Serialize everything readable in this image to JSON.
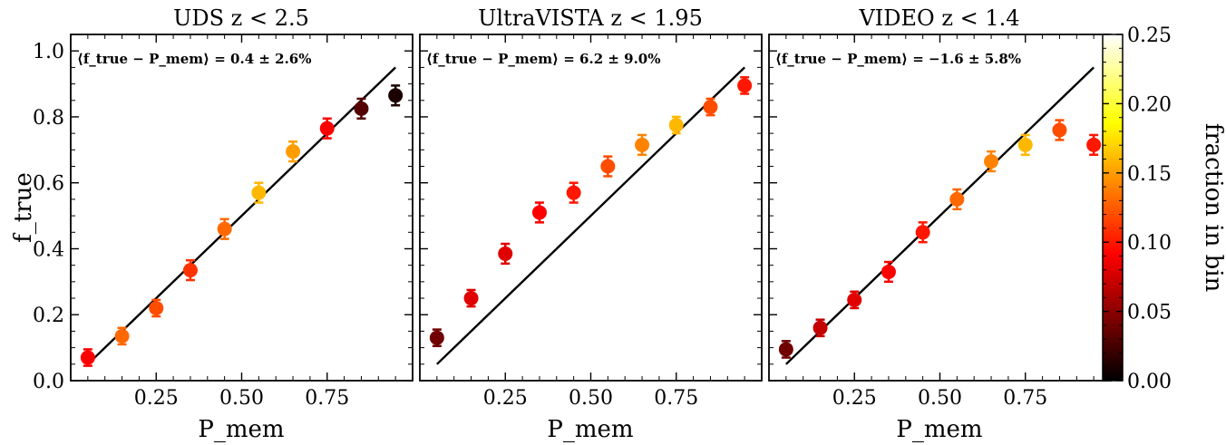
{
  "chart_data": [
    {
      "type": "scatter",
      "title": "UDS z < 2.5",
      "xlabel": "P_mem",
      "ylabel": "f_true",
      "annotation": "⟨f_true − P_mem⟩ = 0.4 ± 2.6%",
      "xlim": [
        0,
        1
      ],
      "ylim": [
        0,
        1.05
      ],
      "xticks": [
        "0.25",
        "0.50",
        "0.75"
      ],
      "yticks": [
        "0.0",
        "0.2",
        "0.4",
        "0.6",
        "0.8",
        "1.0"
      ],
      "line": {
        "x": [
          0.05,
          0.95
        ],
        "y": [
          0.05,
          0.95
        ]
      },
      "points": [
        {
          "x": 0.05,
          "y": 0.07,
          "err": 0.025,
          "frac": 0.09
        },
        {
          "x": 0.15,
          "y": 0.135,
          "err": 0.025,
          "frac": 0.13
        },
        {
          "x": 0.25,
          "y": 0.22,
          "err": 0.025,
          "frac": 0.12
        },
        {
          "x": 0.35,
          "y": 0.335,
          "err": 0.03,
          "frac": 0.11
        },
        {
          "x": 0.45,
          "y": 0.46,
          "err": 0.03,
          "frac": 0.13
        },
        {
          "x": 0.55,
          "y": 0.57,
          "err": 0.03,
          "frac": 0.16
        },
        {
          "x": 0.65,
          "y": 0.695,
          "err": 0.03,
          "frac": 0.15
        },
        {
          "x": 0.75,
          "y": 0.765,
          "err": 0.03,
          "frac": 0.09
        },
        {
          "x": 0.85,
          "y": 0.825,
          "err": 0.03,
          "frac": 0.03
        },
        {
          "x": 0.95,
          "y": 0.865,
          "err": 0.03,
          "frac": 0.01
        }
      ]
    },
    {
      "type": "scatter",
      "title": "UltraVISTA z < 1.95",
      "xlabel": "P_mem",
      "ylabel": "",
      "annotation": "⟨f_true − P_mem⟩ = 6.2 ± 9.0%",
      "xlim": [
        0,
        1
      ],
      "ylim": [
        0,
        1.05
      ],
      "xticks": [
        "0.25",
        "0.50",
        "0.75"
      ],
      "yticks": [],
      "line": {
        "x": [
          0.05,
          0.95
        ],
        "y": [
          0.05,
          0.95
        ]
      },
      "points": [
        {
          "x": 0.05,
          "y": 0.13,
          "err": 0.025,
          "frac": 0.04
        },
        {
          "x": 0.15,
          "y": 0.25,
          "err": 0.025,
          "frac": 0.08
        },
        {
          "x": 0.25,
          "y": 0.385,
          "err": 0.03,
          "frac": 0.08
        },
        {
          "x": 0.35,
          "y": 0.51,
          "err": 0.03,
          "frac": 0.09
        },
        {
          "x": 0.45,
          "y": 0.57,
          "err": 0.03,
          "frac": 0.1
        },
        {
          "x": 0.55,
          "y": 0.65,
          "err": 0.03,
          "frac": 0.12
        },
        {
          "x": 0.65,
          "y": 0.715,
          "err": 0.03,
          "frac": 0.14
        },
        {
          "x": 0.75,
          "y": 0.775,
          "err": 0.025,
          "frac": 0.16
        },
        {
          "x": 0.85,
          "y": 0.83,
          "err": 0.025,
          "frac": 0.12
        },
        {
          "x": 0.95,
          "y": 0.895,
          "err": 0.025,
          "frac": 0.1
        }
      ]
    },
    {
      "type": "scatter",
      "title": "VIDEO z < 1.4",
      "xlabel": "P_mem",
      "ylabel": "",
      "annotation": "⟨f_true − P_mem⟩ = −1.6 ± 5.8%",
      "xlim": [
        0,
        1
      ],
      "ylim": [
        0,
        1.05
      ],
      "xticks": [
        "0.25",
        "0.50",
        "0.75"
      ],
      "yticks": [],
      "line": {
        "x": [
          0.05,
          0.95
        ],
        "y": [
          0.05,
          0.95
        ]
      },
      "points": [
        {
          "x": 0.05,
          "y": 0.095,
          "err": 0.025,
          "frac": 0.04
        },
        {
          "x": 0.15,
          "y": 0.16,
          "err": 0.025,
          "frac": 0.07
        },
        {
          "x": 0.25,
          "y": 0.245,
          "err": 0.025,
          "frac": 0.08
        },
        {
          "x": 0.35,
          "y": 0.33,
          "err": 0.03,
          "frac": 0.09
        },
        {
          "x": 0.45,
          "y": 0.45,
          "err": 0.03,
          "frac": 0.1
        },
        {
          "x": 0.55,
          "y": 0.55,
          "err": 0.03,
          "frac": 0.13
        },
        {
          "x": 0.65,
          "y": 0.665,
          "err": 0.03,
          "frac": 0.14
        },
        {
          "x": 0.75,
          "y": 0.715,
          "err": 0.03,
          "frac": 0.16
        },
        {
          "x": 0.85,
          "y": 0.76,
          "err": 0.03,
          "frac": 0.12
        },
        {
          "x": 0.95,
          "y": 0.715,
          "err": 0.03,
          "frac": 0.1
        }
      ]
    }
  ],
  "colorbar": {
    "label": "fraction in bin",
    "ticks": [
      "0.00",
      "0.05",
      "0.10",
      "0.15",
      "0.20",
      "0.25"
    ],
    "range": [
      0,
      0.25
    ],
    "colormap": "hot",
    "colors": [
      "#000000",
      "#ff0000",
      "#ffff00",
      "#ffffff"
    ]
  }
}
